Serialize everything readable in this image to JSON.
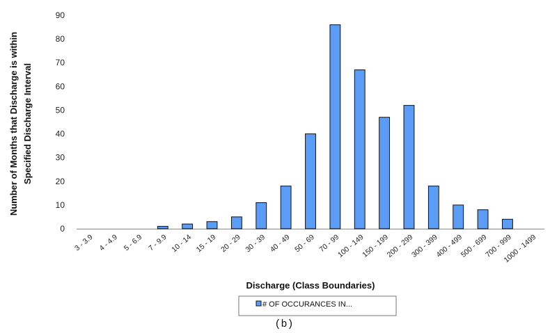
{
  "chart_data": {
    "type": "bar",
    "categories": [
      "3 - 3.9",
      "4 - 4.9",
      "5 - 6.9",
      "7 - 9.9",
      "10 - 14",
      "15 - 19",
      "20 - 29",
      "30 - 39",
      "40 - 49",
      "50 - 69",
      "70 - 99",
      "100 - 149",
      "150 - 199",
      "200 - 299",
      "300 - 399",
      "400 - 499",
      "500 - 699",
      "700 - 999",
      "1000 - 1499"
    ],
    "series": [
      {
        "name": "# OF OCCURANCES IN...",
        "values": [
          0,
          0,
          0,
          1,
          2,
          3,
          5,
          11,
          18,
          40,
          86,
          67,
          47,
          52,
          18,
          10,
          8,
          4,
          0
        ]
      }
    ],
    "xlabel": "Discharge (Class Boundaries)",
    "ylabel_line1": "Number of Months that Discharge is within",
    "ylabel_line2": "Specified Discharge Interval",
    "ylim": [
      0,
      90
    ],
    "yticks": [
      0,
      10,
      20,
      30,
      40,
      50,
      60,
      70,
      80,
      90
    ],
    "grid": false,
    "legend_position": "bottom",
    "bar_color": "#5b9cf6",
    "bar_edge_color": "#111111"
  },
  "caption": "(b)"
}
